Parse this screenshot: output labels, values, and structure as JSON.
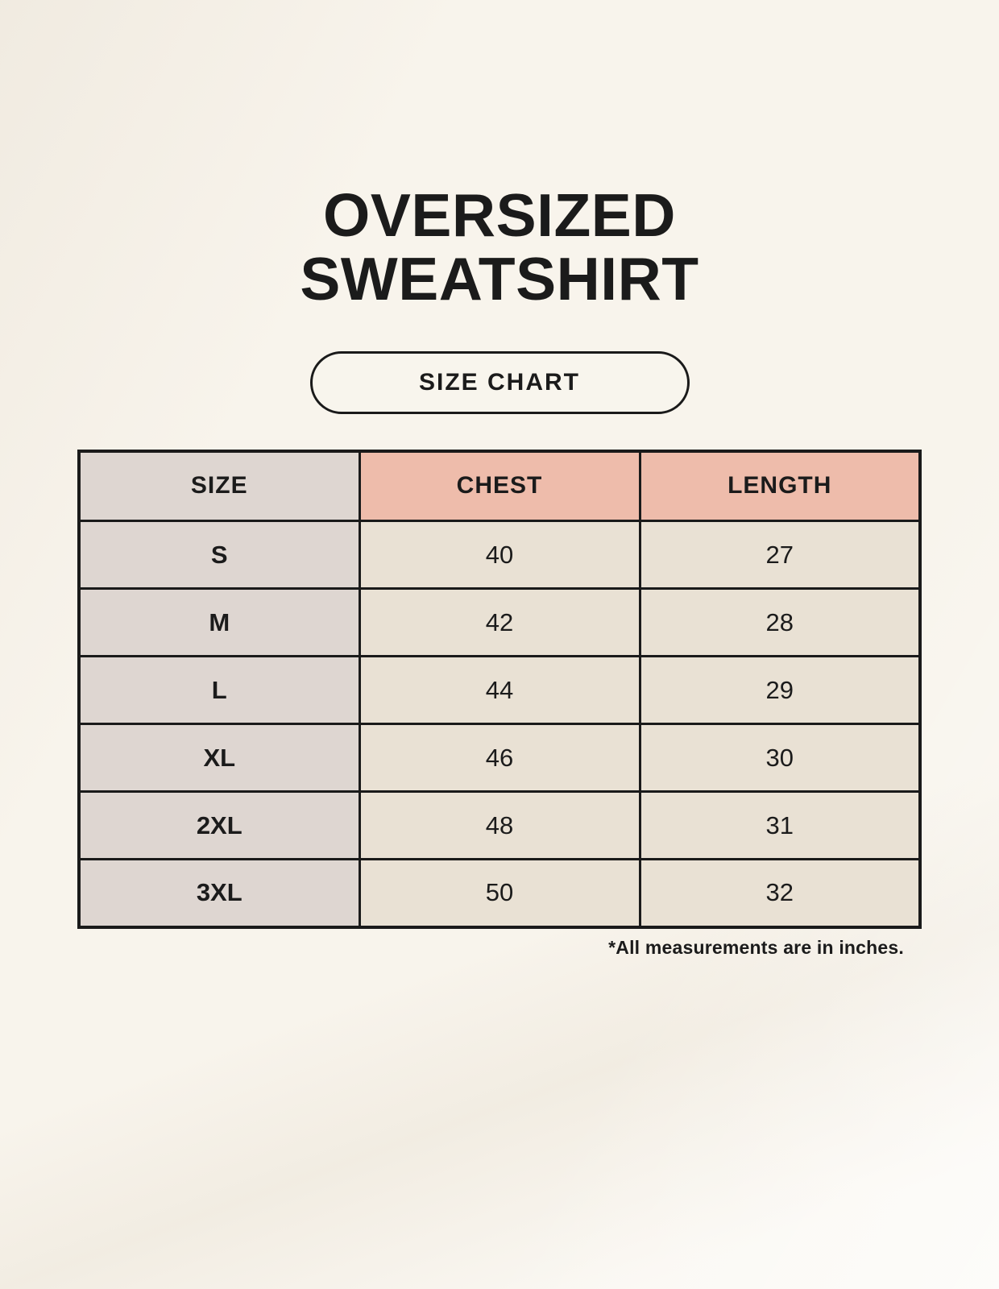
{
  "page": {
    "background": "#f8f4ec",
    "text_color": "#1b1b1b"
  },
  "title": {
    "line1": "OVERSIZED",
    "line2": "SWEATSHIRT"
  },
  "button": {
    "label": "SIZE CHART"
  },
  "chart_data": {
    "type": "table",
    "title": "OVERSIZED SWEATSHIRT",
    "subtitle": "SIZE CHART",
    "columns": [
      "SIZE",
      "CHEST",
      "LENGTH"
    ],
    "rows": [
      [
        "S",
        "40",
        "27"
      ],
      [
        "M",
        "42",
        "28"
      ],
      [
        "L",
        "44",
        "29"
      ],
      [
        "XL",
        "46",
        "30"
      ],
      [
        "2XL",
        "48",
        "31"
      ],
      [
        "3XL",
        "50",
        "32"
      ]
    ],
    "units": "inches",
    "footnote": "*All measurements are in inches."
  },
  "colors": {
    "size_header_bg": "#ded6d1",
    "measurement_header_bg": "#eebcab",
    "size_cell_bg": "#ded6d1",
    "value_cell_bg": "#e9e1d4",
    "border": "#1a1a1a",
    "page_bg": "#f8f4ec"
  }
}
